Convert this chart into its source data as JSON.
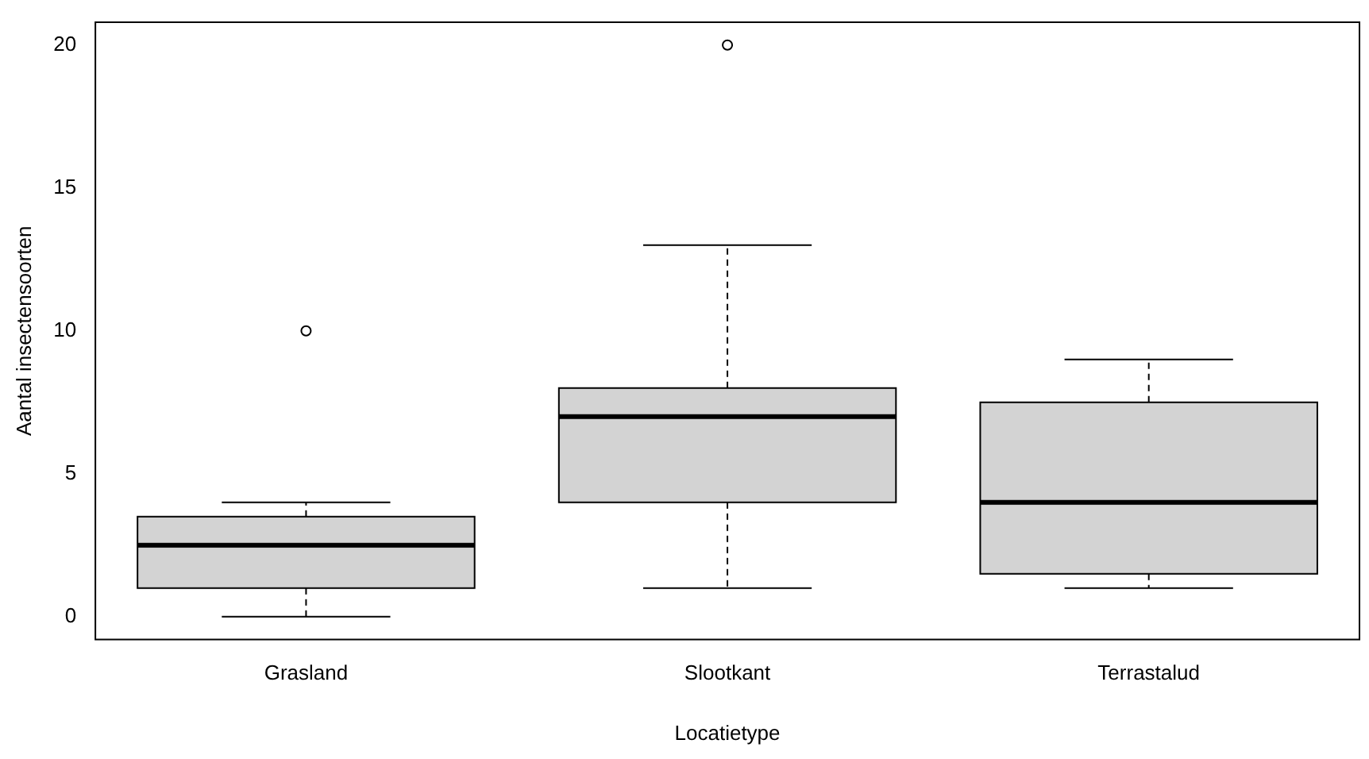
{
  "chart_data": {
    "type": "box",
    "xlabel": "Locatietype",
    "ylabel": "Aantal insectensoorten",
    "categories": [
      "Grasland",
      "Slootkant",
      "Terrastalud"
    ],
    "color": "#d3d3d3",
    "boxes": [
      {
        "low": 0,
        "q1": 1,
        "median": 2.5,
        "q3": 3.5,
        "high": 4,
        "outliers": [
          10
        ]
      },
      {
        "low": 1,
        "q1": 4,
        "median": 7,
        "q3": 8,
        "high": 13,
        "outliers": [
          20
        ]
      },
      {
        "low": 1,
        "q1": 1.5,
        "median": 4,
        "q3": 7.5,
        "high": 9
      }
    ],
    "ylim": [
      -0.8,
      20.8
    ],
    "yticks": [
      0,
      5,
      10,
      15,
      20
    ],
    "grid": false,
    "legend": false
  }
}
